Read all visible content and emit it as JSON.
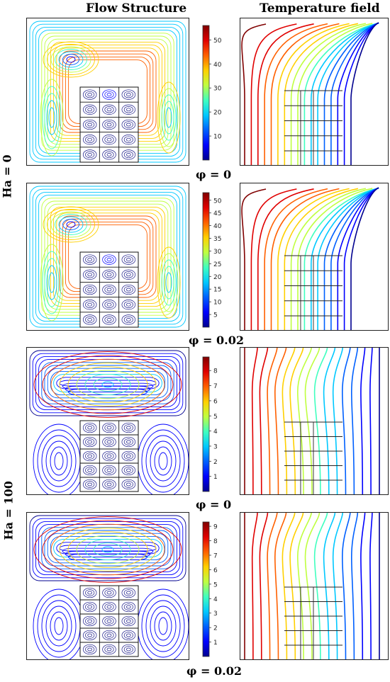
{
  "headers": {
    "flow": "Flow Structure",
    "temperature": "Temperature field"
  },
  "row_labels": {
    "ha0": "Ha = 0",
    "ha100": "Ha = 100"
  },
  "rows": [
    {
      "phi_label": "φ = 0",
      "colorbar": {
        "ticks": [
          "50",
          "40",
          "30",
          "20",
          "10"
        ],
        "min": 0,
        "max": 56,
        "tick_values": [
          50,
          40,
          30,
          20,
          10
        ]
      },
      "vortex": "left"
    },
    {
      "phi_label": "φ = 0.02",
      "colorbar": {
        "ticks": [
          "50",
          "45",
          "40",
          "35",
          "30",
          "25",
          "20",
          "15",
          "10",
          "5"
        ],
        "min": 0,
        "max": 53,
        "tick_values": [
          50,
          45,
          40,
          35,
          30,
          25,
          20,
          15,
          10,
          5
        ]
      },
      "vortex": "left"
    },
    {
      "phi_label": "φ = 0",
      "colorbar": {
        "ticks": [
          "8",
          "7",
          "6",
          "5",
          "4",
          "3",
          "2",
          "1"
        ],
        "min": 0,
        "max": 8.9,
        "tick_values": [
          8,
          7,
          6,
          5,
          4,
          3,
          2,
          1
        ]
      },
      "vortex": "center"
    },
    {
      "phi_label": "φ = 0.02",
      "colorbar": {
        "ticks": [
          "9",
          "8",
          "7",
          "6",
          "5",
          "4",
          "3",
          "2",
          "1"
        ],
        "min": 0,
        "max": 9.3,
        "tick_values": [
          9,
          8,
          7,
          6,
          5,
          4,
          3,
          2,
          1
        ]
      },
      "vortex": "center"
    }
  ],
  "colormap": [
    "#00008f",
    "#0000ff",
    "#0060ff",
    "#00c8ff",
    "#40ffbf",
    "#bfff40",
    "#ffd000",
    "#ff6000",
    "#e00000",
    "#800000"
  ]
}
